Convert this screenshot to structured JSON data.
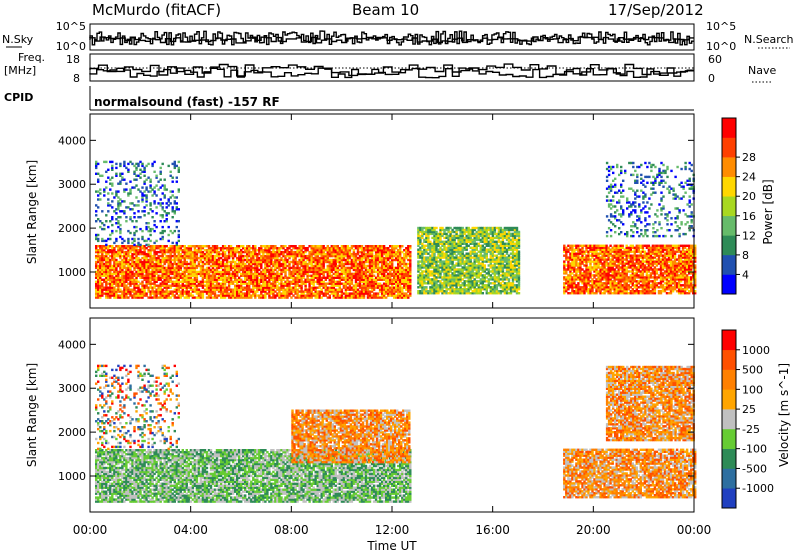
{
  "header": {
    "station": "McMurdo (fitACF)",
    "beam": "Beam 10",
    "date": "17/Sep/2012"
  },
  "top_panels": {
    "nsky_label": "N.Sky",
    "nsky_ticks": [
      "10^5",
      "10^0"
    ],
    "nsearch_label": "N.Search",
    "nsearch_ticks": [
      "10^5",
      "10^0"
    ],
    "freq_label_1": "Freq.",
    "freq_label_2": "[MHz]",
    "freq_ticks": [
      "18",
      "8"
    ],
    "nave_label": "Nave",
    "nave_ticks": [
      "60",
      "0"
    ],
    "cpid_label": "CPID",
    "cpid_text": "normalsound (fast) -157 RF"
  },
  "x_axis": {
    "label": "Time UT",
    "ticks": [
      "00:00",
      "04:00",
      "08:00",
      "12:00",
      "16:00",
      "20:00",
      "00:00"
    ]
  },
  "chart_data": [
    {
      "type": "heatmap",
      "name": "power-panel",
      "ylabel": "Slant Range [km]",
      "yticks": [
        "1000",
        "2000",
        "3000",
        "4000"
      ],
      "ylim": [
        180,
        4600
      ],
      "xlim": [
        0,
        24
      ],
      "colorbar_label": "Power [dB]",
      "colorbar_ticks": [
        "4",
        "8",
        "12",
        "16",
        "20",
        "24",
        "28"
      ],
      "colorbar_colors": [
        "#0000ff",
        "#2050b0",
        "#2e8b57",
        "#66bb6a",
        "#a8d820",
        "#ffd700",
        "#ff8c00",
        "#ff4000",
        "#ff0000"
      ],
      "echo_regions": [
        {
          "t0": 0.2,
          "t1": 12.7,
          "r0": 400,
          "r1": 1600,
          "level": "high"
        },
        {
          "t0": 0.2,
          "t1": 3.5,
          "r0": 1600,
          "r1": 3500,
          "level": "low"
        },
        {
          "t0": 13.0,
          "t1": 17.0,
          "r0": 500,
          "r1": 2000,
          "level": "mid"
        },
        {
          "t0": 18.8,
          "t1": 24.0,
          "r0": 500,
          "r1": 1600,
          "level": "high"
        },
        {
          "t0": 20.5,
          "t1": 24.0,
          "r0": 1800,
          "r1": 3500,
          "level": "low"
        }
      ]
    },
    {
      "type": "heatmap",
      "name": "velocity-panel",
      "ylabel": "Slant Range [km]",
      "yticks": [
        "1000",
        "2000",
        "3000",
        "4000"
      ],
      "ylim": [
        180,
        4600
      ],
      "xlim": [
        0,
        24
      ],
      "colorbar_label": "Velocity [m s^-1]",
      "colorbar_ticks": [
        "1000",
        "500",
        "100",
        "25",
        "-25",
        "-100",
        "-500",
        "-1000"
      ],
      "colorbar_colors": [
        "#2040c0",
        "#2e6fa0",
        "#2e8b57",
        "#66cc33",
        "#c0c0c0",
        "#ffa500",
        "#ff8000",
        "#ff5000",
        "#ff0000"
      ],
      "echo_regions": [
        {
          "t0": 0.2,
          "t1": 12.7,
          "r0": 400,
          "r1": 1600,
          "level": "positive"
        },
        {
          "t0": 0.2,
          "t1": 3.5,
          "r0": 1600,
          "r1": 3500,
          "level": "mixed"
        },
        {
          "t0": 8.0,
          "t1": 12.7,
          "r0": 1300,
          "r1": 2500,
          "level": "negative"
        },
        {
          "t0": 18.8,
          "t1": 24.0,
          "r0": 500,
          "r1": 1600,
          "level": "negative"
        },
        {
          "t0": 20.5,
          "t1": 24.0,
          "r0": 1800,
          "r1": 3500,
          "level": "negative"
        }
      ]
    }
  ]
}
